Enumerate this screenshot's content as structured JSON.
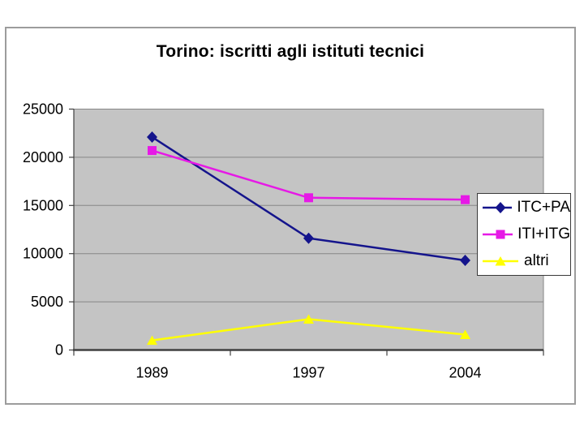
{
  "chart_data": {
    "type": "line",
    "title": "Torino: iscritti agli istituti tecnici",
    "categories": [
      "1989",
      "1997",
      "2004"
    ],
    "series": [
      {
        "name": "ITC+PA",
        "values": [
          22100,
          11600,
          9300
        ],
        "color": "#14148c",
        "marker": "diamond"
      },
      {
        "name": "ITI+ITG",
        "values": [
          20700,
          15800,
          15600
        ],
        "color": "#e619e6",
        "marker": "square"
      },
      {
        "name": "altri",
        "values": [
          1000,
          3200,
          1600
        ],
        "color": "#ffff00",
        "marker": "triangle"
      }
    ],
    "ylim": [
      0,
      25000
    ],
    "yticks": [
      0,
      5000,
      10000,
      15000,
      20000,
      25000
    ],
    "xlabel": "",
    "ylabel": "",
    "grid": "horizontal",
    "legend_position": "right",
    "plot_bg_color": "#c4c4c4",
    "grid_color": "#868686",
    "axis_color": "#404040"
  }
}
